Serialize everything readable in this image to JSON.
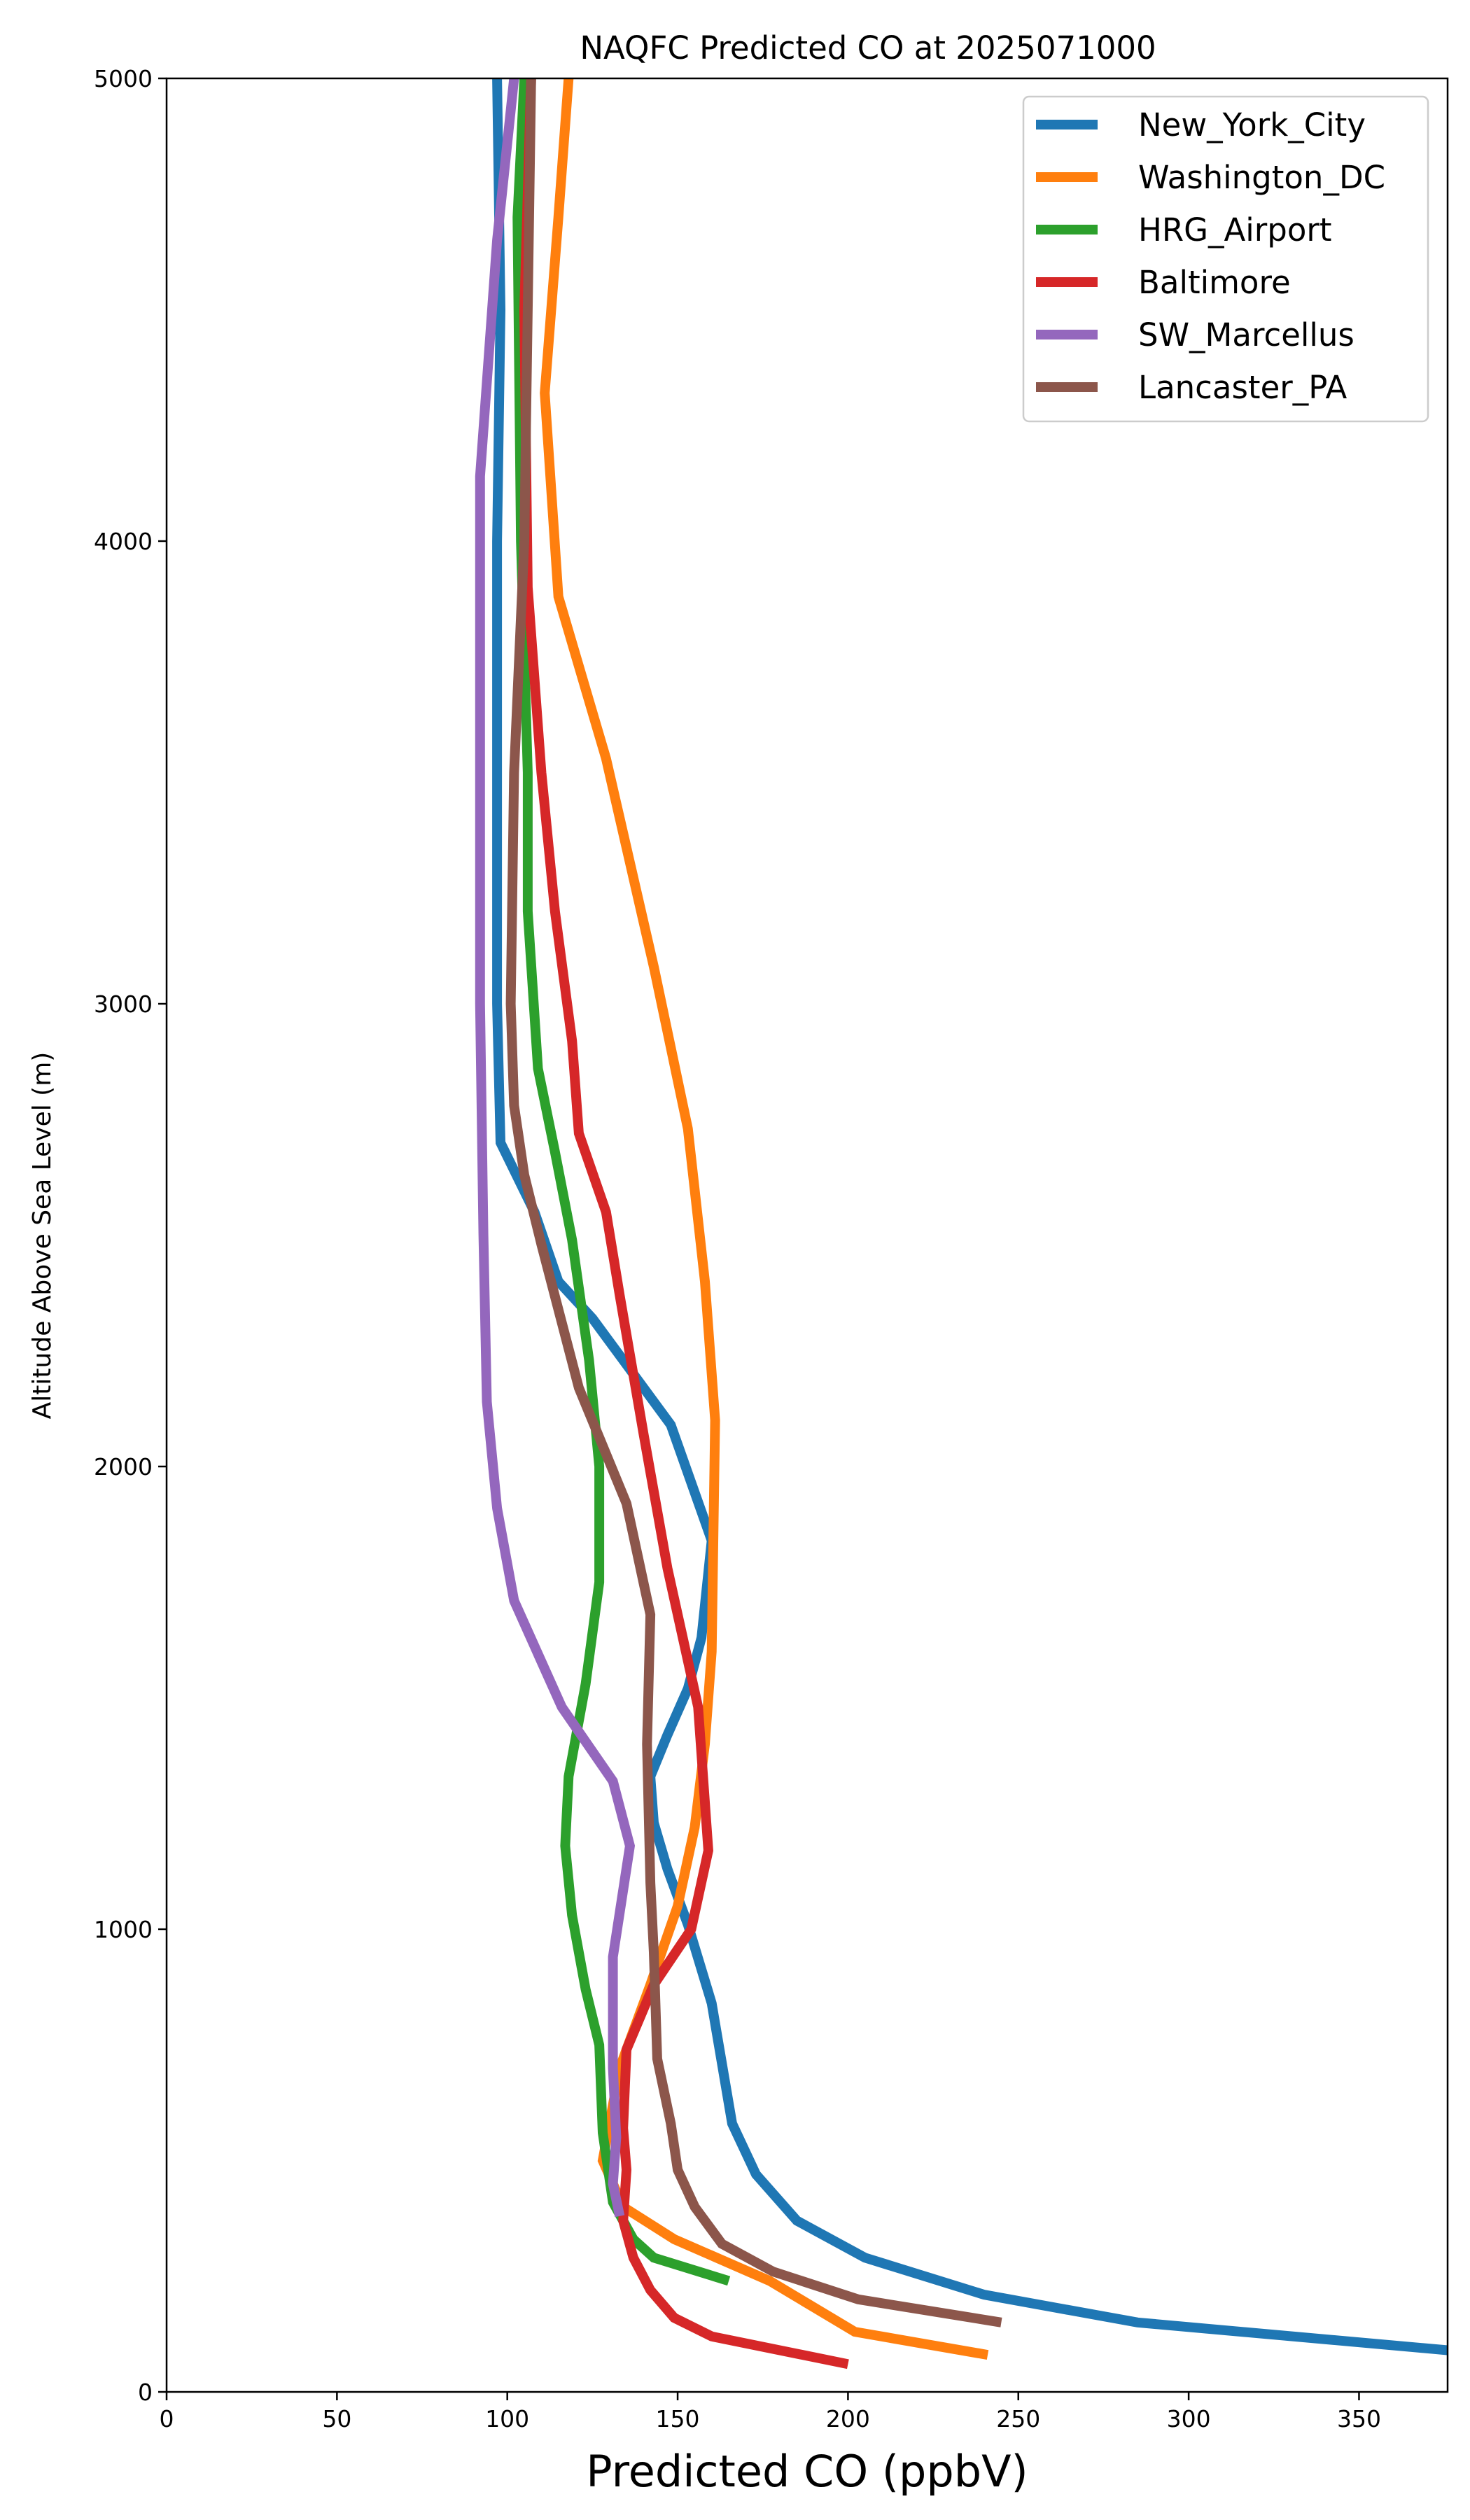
{
  "chart_data": {
    "type": "line",
    "title": "NAQFC Predicted CO at 2025071000",
    "xlabel": "Predicted CO (ppbV)",
    "ylabel": "Altitude Above Sea Level (m)",
    "xlim": [
      0,
      376
    ],
    "ylim": [
      0,
      5000
    ],
    "xticks": [
      0,
      50,
      100,
      150,
      200,
      250,
      300,
      350
    ],
    "yticks": [
      0,
      1000,
      2000,
      3000,
      4000,
      5000
    ],
    "grid": false,
    "legend_position": "upper-right",
    "series": [
      {
        "name": "New_York_City",
        "color": "#1f77b4",
        "points": [
          [
            376,
            90
          ],
          [
            285,
            150
          ],
          [
            240,
            210
          ],
          [
            205,
            290
          ],
          [
            185,
            370
          ],
          [
            173,
            470
          ],
          [
            166,
            580
          ],
          [
            160,
            840
          ],
          [
            153,
            1010
          ],
          [
            147,
            1130
          ],
          [
            143,
            1230
          ],
          [
            142,
            1330
          ],
          [
            147,
            1420
          ],
          [
            153,
            1520
          ],
          [
            157,
            1630
          ],
          [
            160,
            1840
          ],
          [
            148,
            2090
          ],
          [
            137,
            2200
          ],
          [
            125,
            2320
          ],
          [
            115,
            2400
          ],
          [
            108,
            2550
          ],
          [
            98,
            2700
          ],
          [
            97,
            3000
          ],
          [
            97,
            3500
          ],
          [
            97,
            4000
          ],
          [
            98,
            4500
          ],
          [
            97,
            5000
          ]
        ]
      },
      {
        "name": "Washington_DC",
        "color": "#ff7f0e",
        "points": [
          [
            241,
            80
          ],
          [
            202,
            130
          ],
          [
            177,
            240
          ],
          [
            149,
            330
          ],
          [
            134,
            400
          ],
          [
            128,
            500
          ],
          [
            133,
            700
          ],
          [
            142,
            880
          ],
          [
            150,
            1050
          ],
          [
            155,
            1220
          ],
          [
            158,
            1400
          ],
          [
            160,
            1600
          ],
          [
            161,
            2100
          ],
          [
            158,
            2400
          ],
          [
            153,
            2730
          ],
          [
            143,
            3080
          ],
          [
            129,
            3530
          ],
          [
            115,
            3880
          ],
          [
            111,
            4320
          ],
          [
            115,
            4700
          ],
          [
            118,
            5000
          ]
        ]
      },
      {
        "name": "HRG_Airport",
        "color": "#2ca02c",
        "points": [
          [
            165,
            240
          ],
          [
            143,
            290
          ],
          [
            137,
            330
          ],
          [
            131,
            410
          ],
          [
            128,
            560
          ],
          [
            127,
            750
          ],
          [
            123,
            870
          ],
          [
            119,
            1030
          ],
          [
            117,
            1180
          ],
          [
            118,
            1330
          ],
          [
            123,
            1530
          ],
          [
            127,
            1750
          ],
          [
            127,
            2000
          ],
          [
            124,
            2230
          ],
          [
            119,
            2490
          ],
          [
            114,
            2680
          ],
          [
            109,
            2860
          ],
          [
            106,
            3200
          ],
          [
            106,
            3500
          ],
          [
            104,
            4000
          ],
          [
            103,
            4700
          ],
          [
            105,
            5000
          ]
        ]
      },
      {
        "name": "Baltimore",
        "color": "#d62728",
        "points": [
          [
            200,
            60
          ],
          [
            160,
            120
          ],
          [
            149,
            160
          ],
          [
            142,
            220
          ],
          [
            137,
            290
          ],
          [
            134,
            370
          ],
          [
            135,
            480
          ],
          [
            134,
            570
          ],
          [
            135,
            740
          ],
          [
            143,
            880
          ],
          [
            154,
            1000
          ],
          [
            159,
            1170
          ],
          [
            156,
            1480
          ],
          [
            147,
            1780
          ],
          [
            140,
            2070
          ],
          [
            133,
            2370
          ],
          [
            129,
            2550
          ],
          [
            121,
            2720
          ],
          [
            119,
            2920
          ],
          [
            114,
            3200
          ],
          [
            110,
            3500
          ],
          [
            106,
            3900
          ],
          [
            105,
            4500
          ],
          [
            107,
            5000
          ]
        ]
      },
      {
        "name": "SW_Marcellus",
        "color": "#9467bd",
        "points": [
          [
            133,
            380
          ],
          [
            131,
            450
          ],
          [
            132,
            550
          ],
          [
            131,
            700
          ],
          [
            131,
            940
          ],
          [
            136,
            1180
          ],
          [
            131,
            1320
          ],
          [
            116,
            1480
          ],
          [
            102,
            1710
          ],
          [
            97,
            1910
          ],
          [
            94,
            2140
          ],
          [
            93,
            2500
          ],
          [
            92,
            3000
          ],
          [
            92,
            3700
          ],
          [
            92,
            4140
          ],
          [
            97,
            4650
          ],
          [
            102,
            5000
          ]
        ]
      },
      {
        "name": "Lancaster_PA",
        "color": "#8c564b",
        "points": [
          [
            245,
            150
          ],
          [
            203,
            200
          ],
          [
            178,
            260
          ],
          [
            163,
            320
          ],
          [
            155,
            400
          ],
          [
            150,
            480
          ],
          [
            148,
            580
          ],
          [
            144,
            720
          ],
          [
            143,
            950
          ],
          [
            142,
            1100
          ],
          [
            141,
            1400
          ],
          [
            142,
            1680
          ],
          [
            135,
            1920
          ],
          [
            121,
            2170
          ],
          [
            110,
            2480
          ],
          [
            105,
            2630
          ],
          [
            102,
            2780
          ],
          [
            101,
            3000
          ],
          [
            102,
            3500
          ],
          [
            105,
            4000
          ],
          [
            106,
            4500
          ],
          [
            107,
            5000
          ]
        ]
      }
    ]
  }
}
